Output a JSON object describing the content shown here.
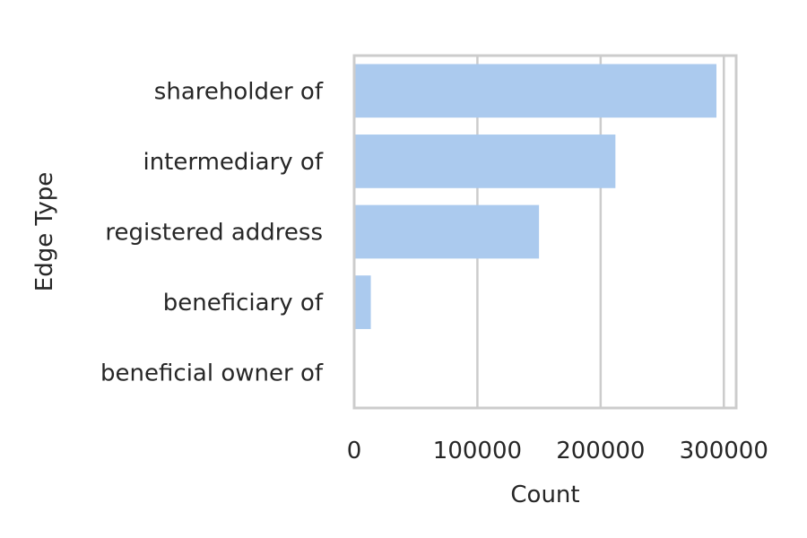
{
  "chart_data": {
    "type": "bar",
    "orientation": "horizontal",
    "categories": [
      "shareholder of",
      "intermediary of",
      "registered address",
      "beneficiary of",
      "beneficial owner of"
    ],
    "values": [
      294000,
      212000,
      150000,
      13500,
      0
    ],
    "xlabel": "Count",
    "ylabel": "Edge Type",
    "xlim": [
      0,
      310000
    ],
    "xticks": [
      0,
      100000,
      200000,
      300000
    ],
    "xtick_labels": [
      "0",
      "100000",
      "200000",
      "300000"
    ],
    "grid": "vertical",
    "bar_color": "#abcaee",
    "grid_color": "#cccccc",
    "text_color": "#262626"
  }
}
